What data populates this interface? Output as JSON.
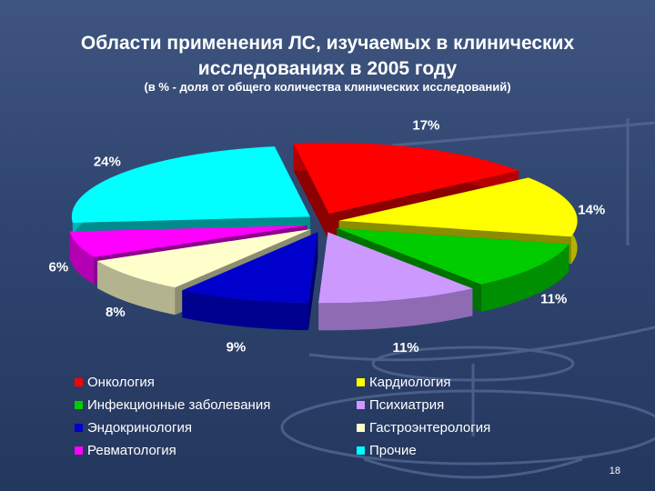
{
  "slide": {
    "title_line1": "Области применения ЛС, изучаемых в клинических",
    "title_line2": "исследованиях в 2005 году",
    "subtitle": "(в % - доля от общего количества клинических исследований)",
    "page_number": "18"
  },
  "chart_data": {
    "type": "pie",
    "title": "Области применения ЛС, изучаемых в клинических исследованиях в 2005 году",
    "subtitle": "(в % - доля от общего количества клинических исследований)",
    "legend_position": "bottom",
    "slices": [
      {
        "name": "Онкология",
        "value": 17,
        "label": "17%",
        "color": "#ff0000"
      },
      {
        "name": "Кардиология",
        "value": 14,
        "label": "14%",
        "color": "#ffff00"
      },
      {
        "name": "Инфекционные заболевания",
        "value": 11,
        "label": "11%",
        "color": "#00cc00"
      },
      {
        "name": "Психиатрия",
        "value": 11,
        "label": "11%",
        "color": "#cc99ff"
      },
      {
        "name": "Эндокринология",
        "value": 9,
        "label": "9%",
        "color": "#0000cc"
      },
      {
        "name": "Гастроэнтерология",
        "value": 8,
        "label": "8%",
        "color": "#ffffcc"
      },
      {
        "name": "Ревматология",
        "value": 6,
        "label": "6%",
        "color": "#ff00ff"
      },
      {
        "name": "Прочие",
        "value": 24,
        "label": "24%",
        "color": "#00ffff"
      }
    ]
  }
}
